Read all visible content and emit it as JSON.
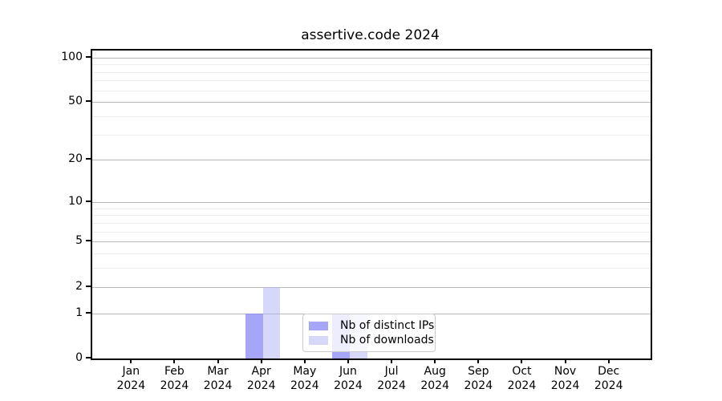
{
  "chart_data": {
    "type": "bar",
    "title": "assertive.code 2024",
    "categories": [
      "Jan",
      "Feb",
      "Mar",
      "Apr",
      "May",
      "Jun",
      "Jul",
      "Aug",
      "Sep",
      "Oct",
      "Nov",
      "Dec"
    ],
    "category_year": "2024",
    "series": [
      {
        "name": "Nb of distinct IPs",
        "color": "rgba(132, 132, 245, 0.72)",
        "values": [
          0,
          0,
          0,
          1,
          0,
          1,
          0,
          0,
          0,
          0,
          0,
          0
        ]
      },
      {
        "name": "Nb of downloads",
        "color": "rgba(176, 176, 243, 0.5)",
        "values": [
          0,
          0,
          0,
          2,
          0,
          1,
          0,
          0,
          0,
          0,
          0,
          0
        ]
      }
    ],
    "xlabel": "",
    "ylabel": "",
    "y_scale": "log1p",
    "ylim": [
      0,
      111.5
    ],
    "y_ticks_major": [
      100,
      50,
      20,
      10,
      5,
      2,
      1,
      0
    ],
    "y_ticks_minor": [
      90,
      80,
      70,
      60,
      40,
      30,
      9,
      8,
      7,
      6,
      4,
      3
    ],
    "grid": true,
    "legend_position": "lower center"
  },
  "colors": {
    "grid_major": "#b9b9b9",
    "grid_minor": "#ececec",
    "axis": "#000000",
    "text": "#000000",
    "legend_border": "#cccccc",
    "legend_background": "rgba(255,255,255,0.8)"
  }
}
